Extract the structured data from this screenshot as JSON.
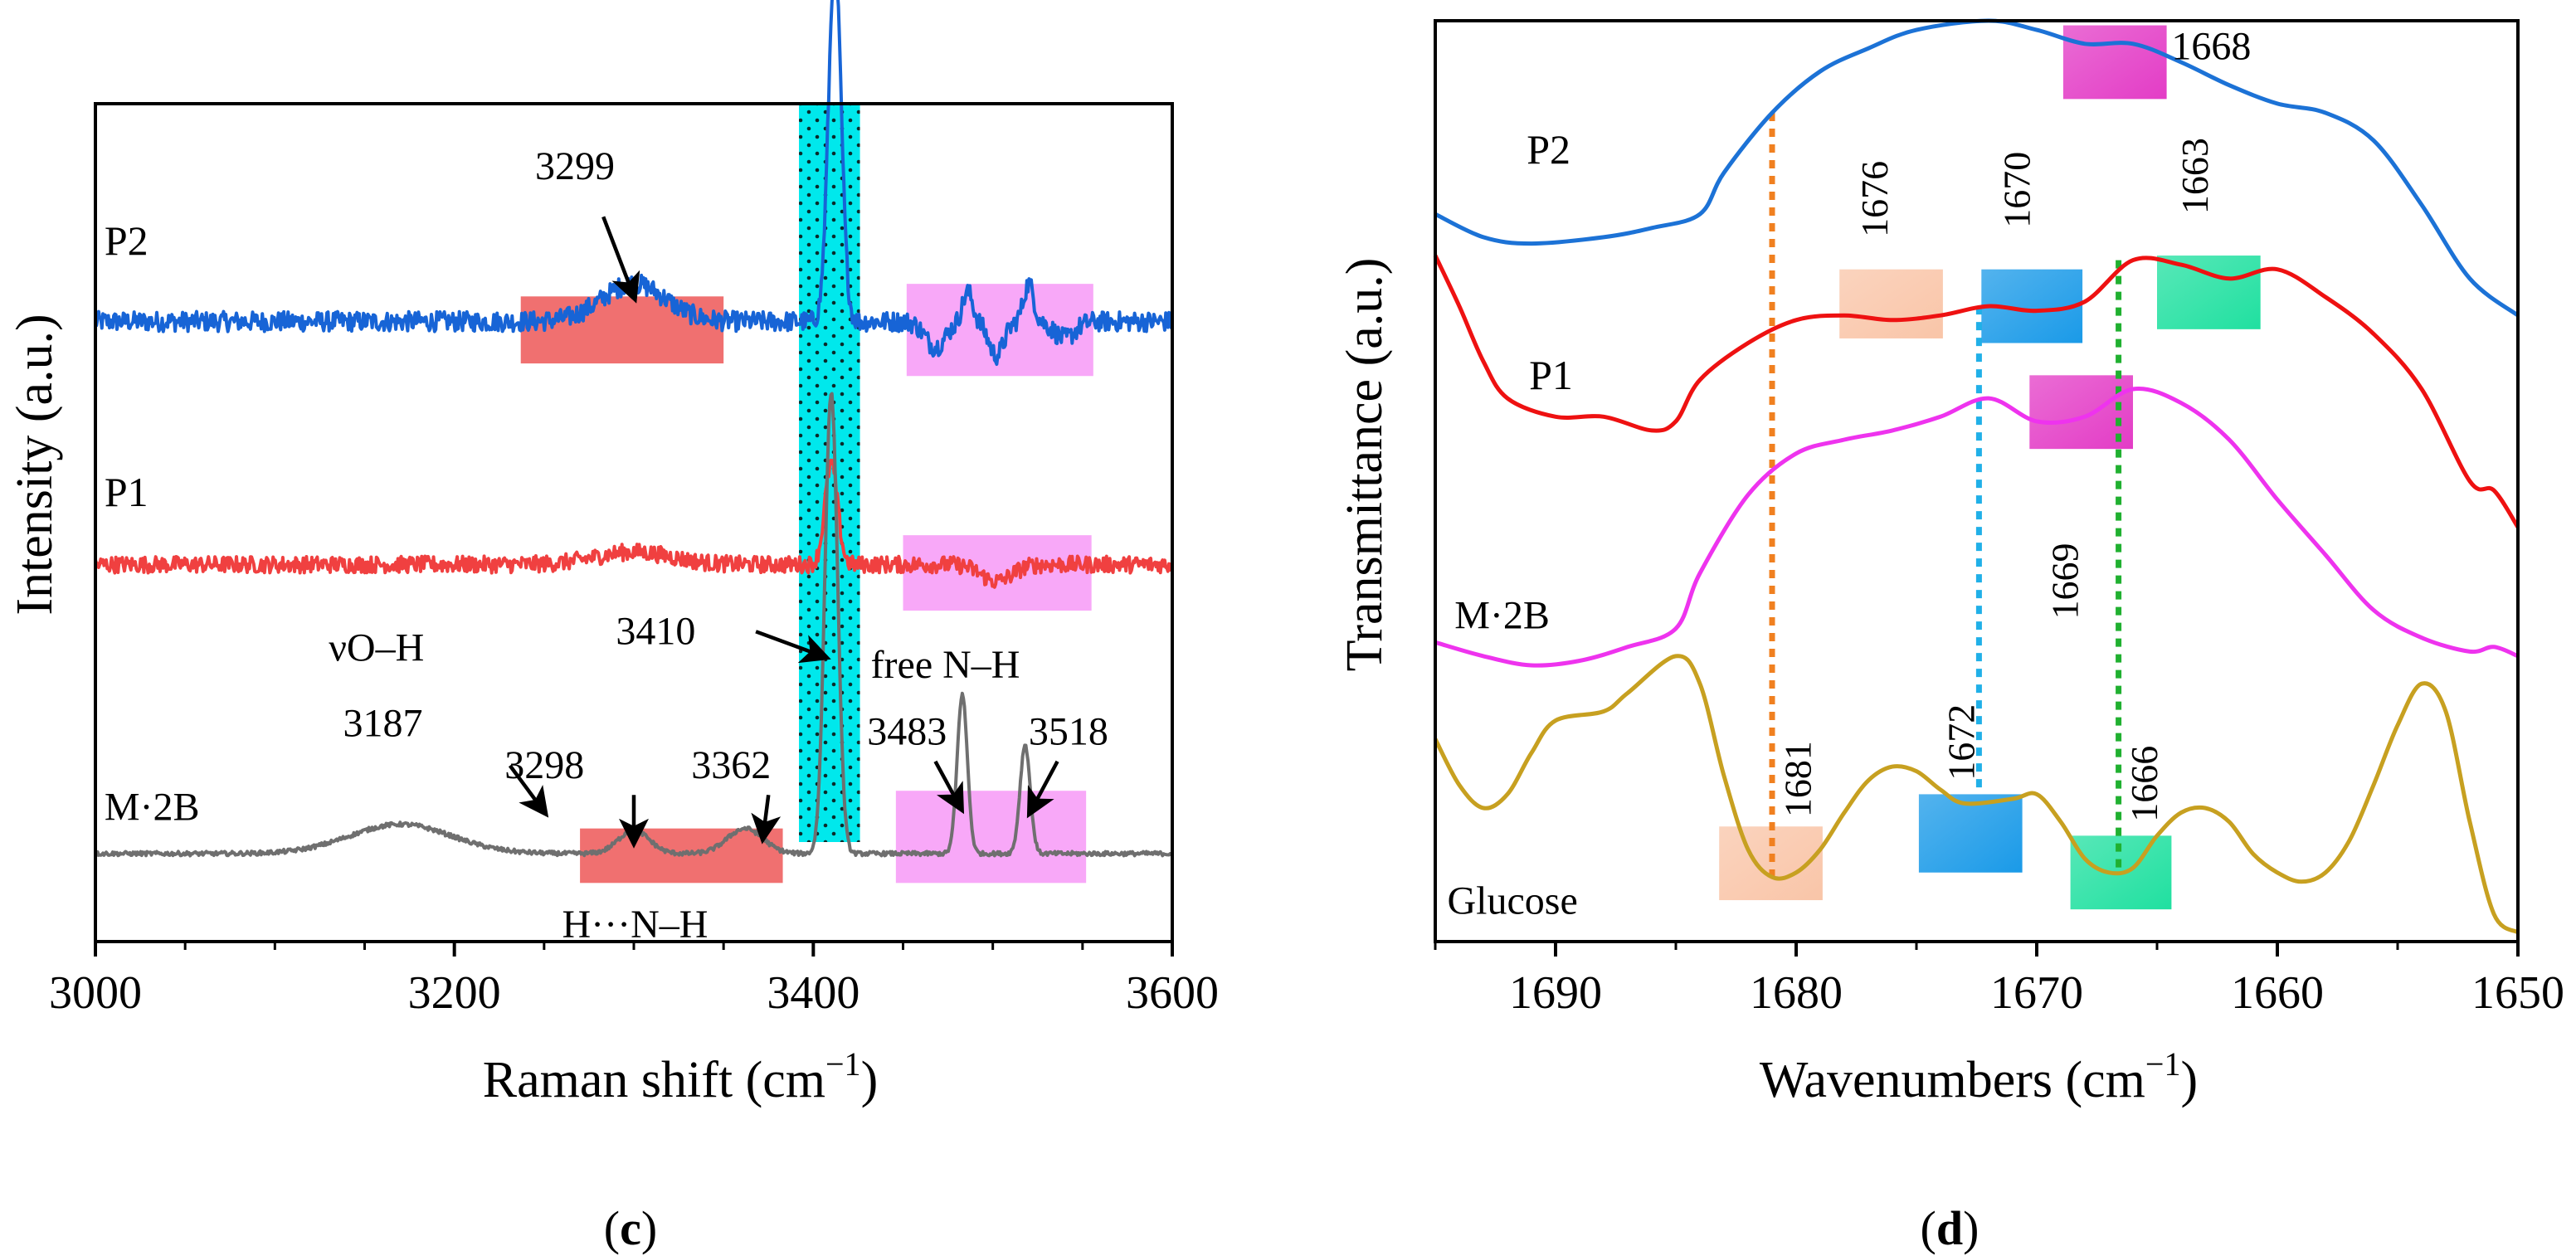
{
  "chart_data": [
    {
      "type": "line",
      "panel_label": "c",
      "xlabel": "Raman shift (cm",
      "xlabel_sup": "−1",
      "xlabel_close": ")",
      "ylabel": "Intensity (a.u.)",
      "xlim": [
        3000,
        3600
      ],
      "xticks": [
        3000,
        3200,
        3400,
        3600
      ],
      "series": [
        {
          "name": "P2",
          "color": "#1764d6",
          "baseline": 0.74,
          "noise": 0.012,
          "peaks": [
            [
              3300,
              25,
              0.045
            ],
            [
              3412,
              5,
              0.43
            ],
            [
              3486,
              4,
              0.035
            ],
            [
              3520,
              4,
              0.045
            ]
          ],
          "dips": [
            [
              3468,
              8,
              0.03
            ],
            [
              3502,
              6,
              0.04
            ],
            [
              3540,
              8,
              0.02
            ]
          ]
        },
        {
          "name": "P1",
          "color": "#f04040",
          "baseline": 0.45,
          "noise": 0.01,
          "peaks": [
            [
              3300,
              30,
              0.015
            ],
            [
              3410,
              5,
              0.12
            ]
          ],
          "dips": [
            [
              3502,
              12,
              0.02
            ]
          ]
        },
        {
          "name": "M·2B",
          "color": "#6f6f6f",
          "baseline": 0.105,
          "noise": 0.0025,
          "peaks": [
            [
              3170,
              40,
              0.035
            ],
            [
              3300,
              12,
              0.028
            ],
            [
              3362,
              14,
              0.03
            ],
            [
              3410,
              5,
              0.55
            ],
            [
              3483,
              4,
              0.19
            ],
            [
              3518,
              4,
              0.13
            ]
          ],
          "dips": []
        }
      ],
      "boxes": [
        {
          "x": [
            3237,
            3350
          ],
          "y": [
            0.69,
            0.77
          ],
          "color": "#f07070"
        },
        {
          "x": [
            3452,
            3556
          ],
          "y": [
            0.675,
            0.785
          ],
          "color": "#f8a8f8"
        },
        {
          "x": [
            3450,
            3555
          ],
          "y": [
            0.395,
            0.485
          ],
          "color": "#f8a8f8"
        },
        {
          "x": [
            3270,
            3383
          ],
          "y": [
            0.07,
            0.135
          ],
          "color": "#f07070"
        },
        {
          "x": [
            3446,
            3552
          ],
          "y": [
            0.07,
            0.18
          ],
          "color": "#f8a8f8"
        }
      ],
      "band": {
        "x": [
          3392,
          3426
        ],
        "color": "#00e8ec"
      },
      "labels": [
        {
          "text": "P2",
          "x": 3005,
          "y": 0.82,
          "size": 50
        },
        {
          "text": "P1",
          "x": 3005,
          "y": 0.52,
          "size": 50
        },
        {
          "text": "M·2B",
          "x": 3005,
          "y": 0.145,
          "size": 48
        },
        {
          "text": "3299",
          "x": 3245,
          "y": 0.91,
          "size": 48
        },
        {
          "text": "νO–H",
          "x": 3130,
          "y": 0.335,
          "size": 48
        },
        {
          "text": "3187",
          "x": 3138,
          "y": 0.245,
          "size": 48
        },
        {
          "text": "3298",
          "x": 3228,
          "y": 0.195,
          "size": 48
        },
        {
          "text": "3362",
          "x": 3332,
          "y": 0.195,
          "size": 48
        },
        {
          "text": "3410",
          "x": 3290,
          "y": 0.355,
          "size": 48
        },
        {
          "text": "free N–H",
          "x": 3432,
          "y": 0.315,
          "size": 48
        },
        {
          "text": "3483",
          "x": 3430,
          "y": 0.235,
          "size": 48
        },
        {
          "text": "3518",
          "x": 3520,
          "y": 0.235,
          "size": 48
        },
        {
          "text": "H···N–H",
          "x": 3260,
          "y": 0.005,
          "size": 48
        }
      ],
      "arrows": [
        [
          3283,
          0.865,
          3300,
          0.77
        ],
        [
          3231,
          0.21,
          3250,
          0.155
        ],
        [
          3300,
          0.175,
          3300,
          0.12
        ],
        [
          3375,
          0.175,
          3372,
          0.125
        ],
        [
          3368,
          0.37,
          3406,
          0.34
        ],
        [
          3468,
          0.215,
          3482,
          0.16
        ],
        [
          3536,
          0.215,
          3521,
          0.155
        ]
      ]
    },
    {
      "type": "line",
      "panel_label": "d",
      "xlabel": "Wavenumbers (cm",
      "xlabel_sup": "−1",
      "xlabel_close": ")",
      "ylabel": "Transmittance (a.u.)",
      "xlim": [
        1695,
        1650
      ],
      "xticks": [
        1690,
        1680,
        1670,
        1660,
        1650
      ],
      "series": [
        {
          "name": "P2",
          "color": "#1c72d6",
          "points": [
            [
              1695,
              0.79
            ],
            [
              1693,
              0.765
            ],
            [
              1691,
              0.758
            ],
            [
              1688,
              0.765
            ],
            [
              1686,
              0.775
            ],
            [
              1684,
              0.79
            ],
            [
              1683,
              0.835
            ],
            [
              1681,
              0.9
            ],
            [
              1679,
              0.945
            ],
            [
              1677,
              0.97
            ],
            [
              1675,
              0.99
            ],
            [
              1672,
              1.0
            ],
            [
              1670,
              0.99
            ],
            [
              1668,
              0.975
            ],
            [
              1666,
              0.975
            ],
            [
              1664,
              0.955
            ],
            [
              1662,
              0.93
            ],
            [
              1660,
              0.91
            ],
            [
              1658,
              0.9
            ],
            [
              1656,
              0.87
            ],
            [
              1654,
              0.8
            ],
            [
              1652,
              0.72
            ],
            [
              1650,
              0.68
            ]
          ]
        },
        {
          "name": "P1",
          "color": "#ee1111",
          "points": [
            [
              1695,
              0.745
            ],
            [
              1694,
              0.69
            ],
            [
              1693,
              0.63
            ],
            [
              1692,
              0.59
            ],
            [
              1690,
              0.57
            ],
            [
              1688,
              0.57
            ],
            [
              1686,
              0.555
            ],
            [
              1685,
              0.565
            ],
            [
              1684,
              0.61
            ],
            [
              1682,
              0.65
            ],
            [
              1680,
              0.675
            ],
            [
              1678,
              0.68
            ],
            [
              1676,
              0.675
            ],
            [
              1674,
              0.68
            ],
            [
              1672,
              0.69
            ],
            [
              1670,
              0.685
            ],
            [
              1668,
              0.695
            ],
            [
              1666,
              0.74
            ],
            [
              1664,
              0.735
            ],
            [
              1662,
              0.72
            ],
            [
              1660,
              0.73
            ],
            [
              1658,
              0.7
            ],
            [
              1656,
              0.66
            ],
            [
              1654,
              0.6
            ],
            [
              1652,
              0.5
            ],
            [
              1651,
              0.49
            ],
            [
              1650,
              0.45
            ]
          ]
        },
        {
          "name": "M·2B",
          "color": "#ee33ee",
          "points": [
            [
              1695,
              0.325
            ],
            [
              1693,
              0.31
            ],
            [
              1691,
              0.3
            ],
            [
              1689,
              0.305
            ],
            [
              1687,
              0.32
            ],
            [
              1685,
              0.34
            ],
            [
              1684,
              0.4
            ],
            [
              1682,
              0.485
            ],
            [
              1680,
              0.53
            ],
            [
              1678,
              0.545
            ],
            [
              1676,
              0.555
            ],
            [
              1674,
              0.57
            ],
            [
              1672,
              0.59
            ],
            [
              1670,
              0.565
            ],
            [
              1668,
              0.57
            ],
            [
              1666,
              0.6
            ],
            [
              1664,
              0.585
            ],
            [
              1662,
              0.545
            ],
            [
              1660,
              0.48
            ],
            [
              1658,
              0.42
            ],
            [
              1656,
              0.36
            ],
            [
              1654,
              0.33
            ],
            [
              1652,
              0.315
            ],
            [
              1651,
              0.32
            ],
            [
              1650,
              0.31
            ]
          ]
        },
        {
          "name": "Glucose",
          "color": "#c7a020",
          "points": [
            [
              1695,
              0.22
            ],
            [
              1694,
              0.17
            ],
            [
              1693,
              0.145
            ],
            [
              1692,
              0.16
            ],
            [
              1691,
              0.205
            ],
            [
              1690,
              0.24
            ],
            [
              1688,
              0.25
            ],
            [
              1687,
              0.27
            ],
            [
              1685,
              0.31
            ],
            [
              1684,
              0.28
            ],
            [
              1683,
              0.18
            ],
            [
              1682,
              0.1
            ],
            [
              1681,
              0.07
            ],
            [
              1680,
              0.075
            ],
            [
              1679,
              0.1
            ],
            [
              1678,
              0.14
            ],
            [
              1677,
              0.175
            ],
            [
              1676,
              0.19
            ],
            [
              1675,
              0.185
            ],
            [
              1674,
              0.165
            ],
            [
              1673,
              0.15
            ],
            [
              1671,
              0.155
            ],
            [
              1670,
              0.16
            ],
            [
              1669,
              0.13
            ],
            [
              1668,
              0.09
            ],
            [
              1667,
              0.075
            ],
            [
              1666,
              0.08
            ],
            [
              1665,
              0.115
            ],
            [
              1664,
              0.14
            ],
            [
              1663,
              0.145
            ],
            [
              1662,
              0.13
            ],
            [
              1661,
              0.095
            ],
            [
              1660,
              0.075
            ],
            [
              1659,
              0.065
            ],
            [
              1658,
              0.075
            ],
            [
              1657,
              0.11
            ],
            [
              1656,
              0.17
            ],
            [
              1655,
              0.235
            ],
            [
              1654,
              0.28
            ],
            [
              1653,
              0.25
            ],
            [
              1652,
              0.13
            ],
            [
              1651,
              0.03
            ],
            [
              1650,
              0.01
            ]
          ]
        }
      ],
      "boxes": [
        {
          "x": [
            1668.9,
            1664.6
          ],
          "y": [
            0.915,
            0.995
          ],
          "color": "#e33cc6"
        },
        {
          "x": [
            1678.2,
            1673.9
          ],
          "y": [
            0.655,
            0.73
          ],
          "color": "#f9c5a8"
        },
        {
          "x": [
            1672.3,
            1668.1
          ],
          "y": [
            0.65,
            0.73
          ],
          "color": "#1a9ae8"
        },
        {
          "x": [
            1665.0,
            1660.7
          ],
          "y": [
            0.665,
            0.745
          ],
          "color": "#20e0a0"
        },
        {
          "x": [
            1670.3,
            1666.0
          ],
          "y": [
            0.535,
            0.615
          ],
          "color": "#e33cc6"
        },
        {
          "x": [
            1683.2,
            1678.9
          ],
          "y": [
            0.045,
            0.125
          ],
          "color": "#f9c5a8"
        },
        {
          "x": [
            1674.9,
            1670.6
          ],
          "y": [
            0.075,
            0.16
          ],
          "color": "#1a9ae8"
        },
        {
          "x": [
            1668.6,
            1664.4
          ],
          "y": [
            0.035,
            0.115
          ],
          "color": "#20e0a0"
        }
      ],
      "dotted_lines": [
        {
          "x": 1681,
          "y": [
            0.07,
            0.9
          ],
          "color": "#f08020"
        },
        {
          "x": 1672.4,
          "y": [
            0.16,
            0.69
          ],
          "color": "#20b0e8"
        },
        {
          "x": 1666.6,
          "y": [
            0.075,
            0.74
          ],
          "color": "#20b030"
        }
      ],
      "labels": [
        {
          "text": "P2",
          "x": 1691.2,
          "y": 0.845,
          "size": 50,
          "rot": 0
        },
        {
          "text": "P1",
          "x": 1691.1,
          "y": 0.6,
          "size": 50,
          "rot": 0
        },
        {
          "text": "M·2B",
          "x": 1694.2,
          "y": 0.34,
          "size": 48,
          "rot": 0
        },
        {
          "text": "Glucose",
          "x": 1694.5,
          "y": 0.03,
          "size": 48,
          "rot": 0
        },
        {
          "text": "1668",
          "x": 1664.4,
          "y": 0.958,
          "size": 48,
          "rot": 0
        },
        {
          "text": "1676",
          "x": 1676.2,
          "y": 0.765,
          "size": 46,
          "rot": -90
        },
        {
          "text": "1670",
          "x": 1670.3,
          "y": 0.775,
          "size": 46,
          "rot": -90
        },
        {
          "text": "1663",
          "x": 1662.9,
          "y": 0.79,
          "size": 46,
          "rot": -90
        },
        {
          "text": "1669",
          "x": 1668.3,
          "y": 0.35,
          "size": 46,
          "rot": -90
        },
        {
          "text": "1681",
          "x": 1679.4,
          "y": 0.135,
          "size": 46,
          "rot": -90
        },
        {
          "text": "1672",
          "x": 1672.6,
          "y": 0.175,
          "size": 46,
          "rot": -90
        },
        {
          "text": "1666",
          "x": 1665.0,
          "y": 0.13,
          "size": 46,
          "rot": -90
        }
      ]
    }
  ]
}
